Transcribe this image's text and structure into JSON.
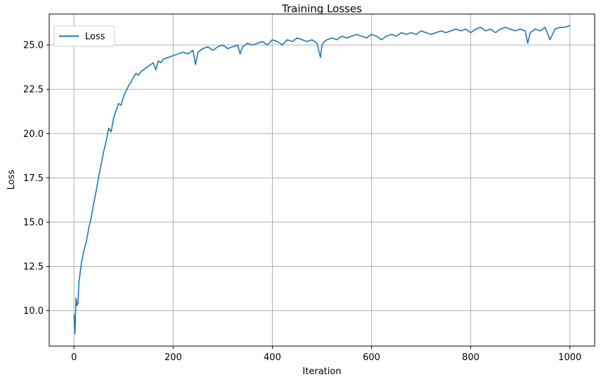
{
  "chart_data": {
    "type": "line",
    "title": "Training Losses",
    "xlabel": "Iteration",
    "ylabel": "Loss",
    "xlim": [
      -50,
      1050
    ],
    "ylim": [
      8.0,
      26.75
    ],
    "xticks": [
      0,
      200,
      400,
      600,
      800,
      1000
    ],
    "xtick_labels": [
      "0",
      "200",
      "400",
      "600",
      "800",
      "1000"
    ],
    "yticks": [
      10.0,
      12.5,
      15.0,
      17.5,
      20.0,
      22.5,
      25.0
    ],
    "ytick_labels": [
      "10.0",
      "12.5",
      "15.0",
      "17.5",
      "20.0",
      "22.5",
      "25.0"
    ],
    "grid": true,
    "legend_position": "top-left",
    "series": [
      {
        "name": "Loss",
        "color": "#1f77b4",
        "x": [
          0,
          2,
          4,
          6,
          8,
          10,
          15,
          20,
          25,
          30,
          35,
          40,
          45,
          50,
          55,
          60,
          65,
          70,
          75,
          80,
          85,
          90,
          95,
          100,
          105,
          110,
          115,
          120,
          125,
          130,
          135,
          140,
          145,
          150,
          155,
          160,
          165,
          170,
          175,
          180,
          190,
          200,
          210,
          220,
          230,
          240,
          245,
          250,
          260,
          270,
          280,
          290,
          300,
          310,
          320,
          330,
          335,
          340,
          350,
          360,
          370,
          380,
          390,
          400,
          410,
          420,
          430,
          440,
          450,
          460,
          470,
          480,
          490,
          497,
          500,
          505,
          510,
          520,
          530,
          540,
          550,
          560,
          570,
          580,
          590,
          600,
          610,
          620,
          630,
          640,
          650,
          660,
          670,
          680,
          690,
          700,
          710,
          720,
          730,
          740,
          750,
          760,
          770,
          780,
          790,
          800,
          810,
          820,
          830,
          840,
          850,
          860,
          870,
          880,
          890,
          900,
          910,
          915,
          920,
          930,
          940,
          950,
          960,
          970,
          980,
          990,
          1000
        ],
        "values": [
          9.8,
          8.7,
          10.7,
          10.3,
          10.4,
          11.6,
          12.7,
          13.4,
          13.9,
          14.7,
          15.3,
          16.1,
          16.8,
          17.6,
          18.3,
          19.0,
          19.6,
          20.3,
          20.1,
          20.9,
          21.3,
          21.7,
          21.6,
          22.1,
          22.4,
          22.7,
          22.9,
          23.2,
          23.4,
          23.3,
          23.5,
          23.6,
          23.7,
          23.8,
          23.9,
          24.0,
          23.6,
          24.1,
          24.0,
          24.2,
          24.3,
          24.4,
          24.5,
          24.6,
          24.5,
          24.7,
          23.9,
          24.6,
          24.8,
          24.9,
          24.7,
          24.9,
          25.0,
          24.8,
          24.9,
          25.0,
          24.5,
          24.9,
          25.1,
          25.0,
          25.1,
          25.2,
          25.0,
          25.3,
          25.2,
          25.0,
          25.3,
          25.2,
          25.4,
          25.3,
          25.2,
          25.3,
          25.1,
          24.3,
          25.0,
          25.2,
          25.3,
          25.4,
          25.3,
          25.5,
          25.4,
          25.5,
          25.6,
          25.5,
          25.4,
          25.6,
          25.5,
          25.3,
          25.5,
          25.6,
          25.5,
          25.7,
          25.6,
          25.7,
          25.6,
          25.8,
          25.7,
          25.6,
          25.7,
          25.8,
          25.7,
          25.8,
          25.9,
          25.8,
          25.9,
          25.7,
          25.9,
          26.0,
          25.8,
          25.9,
          25.7,
          25.9,
          26.0,
          25.9,
          25.8,
          25.9,
          25.8,
          25.1,
          25.7,
          25.9,
          25.8,
          26.0,
          25.3,
          25.9,
          26.0,
          26.0,
          26.1
        ]
      }
    ]
  }
}
